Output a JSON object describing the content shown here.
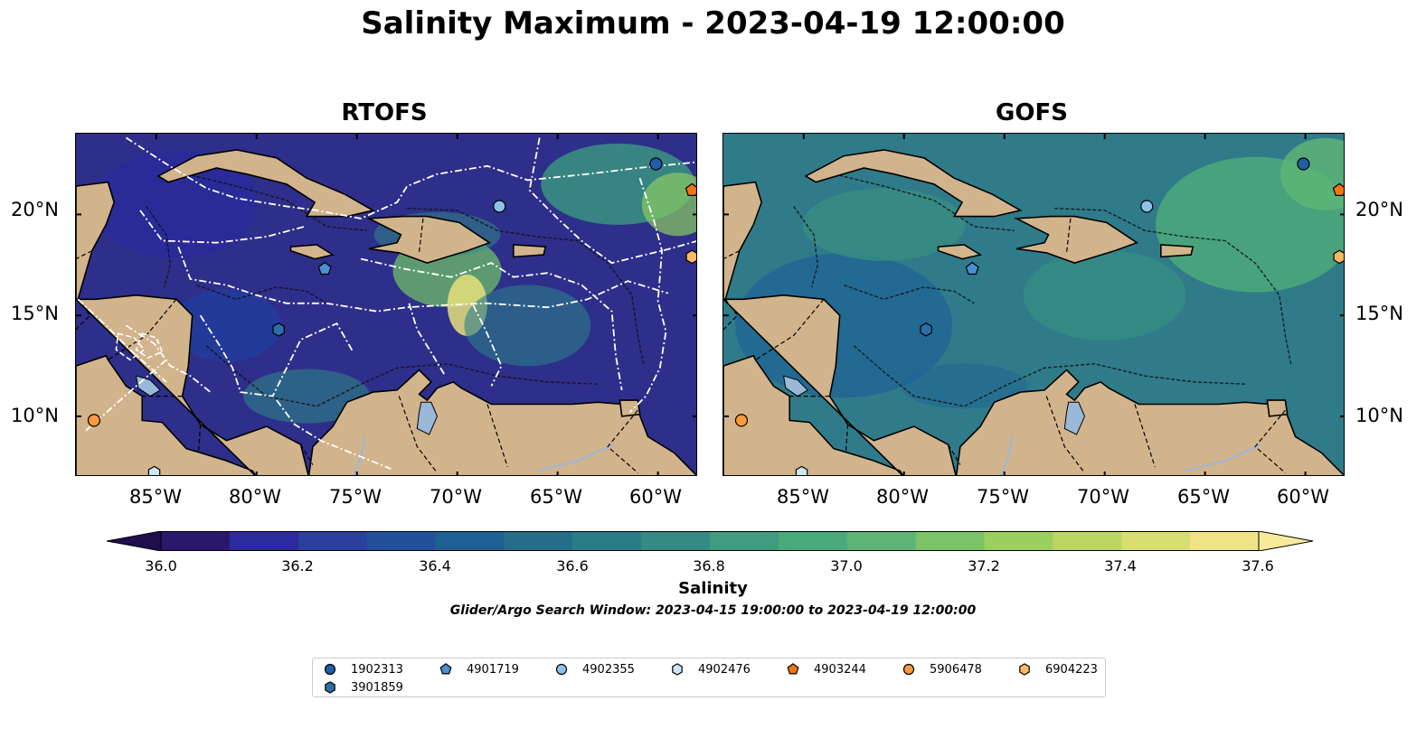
{
  "title": "Salinity Maximum - 2023-04-19 12:00:00",
  "panels": [
    {
      "title": "RTOFS"
    },
    {
      "title": "GOFS"
    }
  ],
  "axes": {
    "lon_ticks": [
      "85°W",
      "80°W",
      "75°W",
      "70°W",
      "65°W",
      "60°W"
    ],
    "lat_ticks": [
      "20°N",
      "15°N",
      "10°N"
    ],
    "lon_range": [
      -89,
      -58
    ],
    "lat_range": [
      7,
      24
    ]
  },
  "colorbar": {
    "label": "Salinity",
    "min": 36.0,
    "max": 37.6,
    "ticks": [
      "36.0",
      "36.2",
      "36.4",
      "36.6",
      "36.8",
      "37.0",
      "37.2",
      "37.4",
      "37.6"
    ],
    "colors": [
      "#2a186c",
      "#2c2a9e",
      "#2a3f9e",
      "#24509a",
      "#1f6093",
      "#246e8a",
      "#2a7d88",
      "#358a84",
      "#3f9a7e",
      "#4aa97a",
      "#5db474",
      "#7cc266",
      "#9bcf5e",
      "#bcd661",
      "#d8df6e",
      "#f1e487"
    ],
    "extend": "both"
  },
  "search_window": "Glider/Argo Search Window: 2023-04-15 19:00:00 to 2023-04-19 12:00:00",
  "legend": [
    {
      "id": "1902313",
      "marker": "circle",
      "color": "#1f5fa6"
    },
    {
      "id": "4901719",
      "marker": "pentagon",
      "color": "#4a8fd0"
    },
    {
      "id": "4902355",
      "marker": "circle",
      "color": "#8cc2e8"
    },
    {
      "id": "4902476",
      "marker": "hexagon",
      "color": "#cde6f5"
    },
    {
      "id": "4903244",
      "marker": "pentagon",
      "color": "#f07414"
    },
    {
      "id": "5906478",
      "marker": "circle",
      "color": "#fb9a3c"
    },
    {
      "id": "6904223",
      "marker": "hexagon",
      "color": "#fdb863"
    },
    {
      "id": "3901859",
      "marker": "hexagon",
      "color": "#2d6ea8"
    }
  ],
  "floats": [
    {
      "id": "1902313",
      "lon": -60.1,
      "lat": 22.5
    },
    {
      "id": "4901719",
      "lon": -76.6,
      "lat": 17.3
    },
    {
      "id": "4902355",
      "lon": -67.9,
      "lat": 20.4
    },
    {
      "id": "4902476",
      "lon": -85.1,
      "lat": 7.2
    },
    {
      "id": "4903244",
      "lon": -58.3,
      "lat": 21.2
    },
    {
      "id": "5906478",
      "lon": -88.1,
      "lat": 9.8
    },
    {
      "id": "6904223",
      "lon": -58.3,
      "lat": 17.9
    },
    {
      "id": "3901859",
      "lon": -78.9,
      "lat": 14.3
    }
  ],
  "land_color": "#d2b48c",
  "ocean_colors": {
    "rtofs": "#2e2f8a",
    "gofs": "#2f7b8a"
  }
}
